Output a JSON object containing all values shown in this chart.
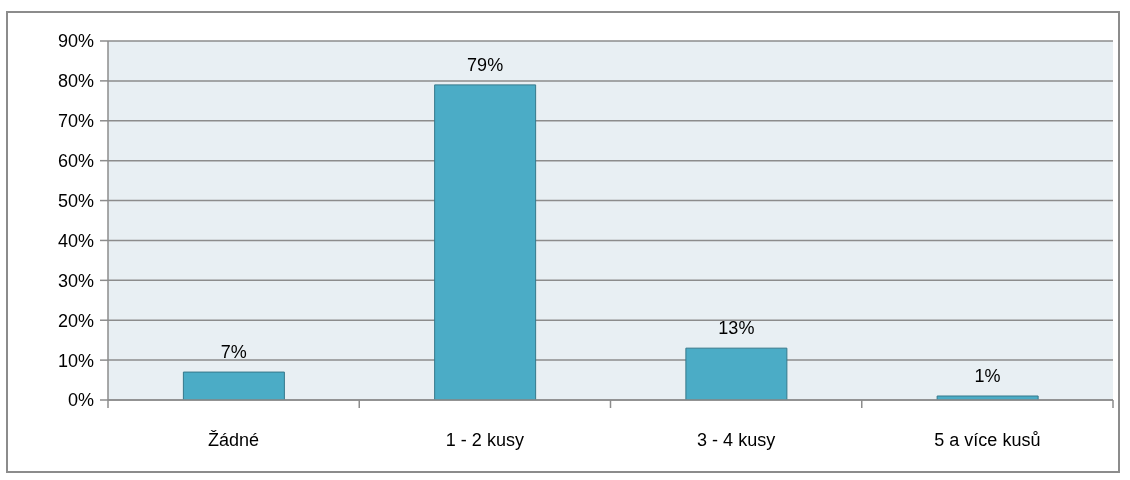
{
  "chart_data": {
    "type": "bar",
    "categories": [
      "Žádné",
      "1 - 2 kusy",
      "3 - 4 kusy",
      "5 a více kusů"
    ],
    "values": [
      7,
      79,
      13,
      1
    ],
    "color": "#4bacc6",
    "value_labels": [
      "7%",
      "79%",
      "13%",
      "1%"
    ],
    "ylim": [
      0,
      90
    ],
    "yticks": [
      {
        "value": 0,
        "label": "0%"
      },
      {
        "value": 10,
        "label": "10%"
      },
      {
        "value": 20,
        "label": "20%"
      },
      {
        "value": 30,
        "label": "30%"
      },
      {
        "value": 40,
        "label": "40%"
      },
      {
        "value": 50,
        "label": "50%"
      },
      {
        "value": 60,
        "label": "60%"
      },
      {
        "value": 70,
        "label": "70%"
      },
      {
        "value": 80,
        "label": "80%"
      },
      {
        "value": 90,
        "label": "90%"
      }
    ],
    "grid": "y"
  }
}
